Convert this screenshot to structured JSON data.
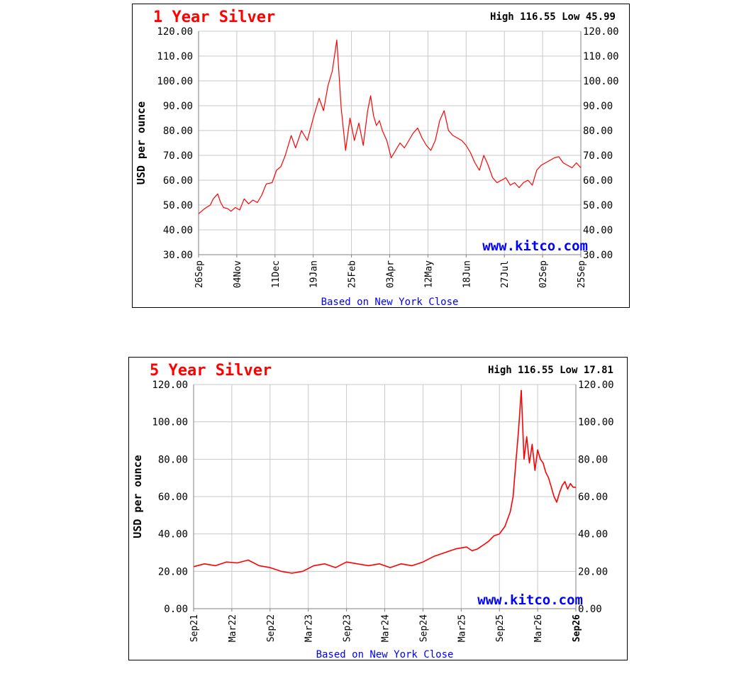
{
  "charts": {
    "colors": {
      "line": "#ff0000",
      "title": "#ff0000",
      "grid": "#c8c8c8",
      "border": "#000000",
      "axis_text": "#000000",
      "footer": "#0000ff",
      "watermark": "#0000ff"
    },
    "one_year": {
      "title": "1 Year Silver",
      "high_low": "High 116.55 Low 45.99",
      "watermark": "www.kitco.com",
      "footer": "Based on New York Close",
      "ylabel": "USD per ounce"
    },
    "five_year": {
      "title": "5 Year Silver",
      "high_low": "High 116.55 Low 17.81",
      "watermark": "www.kitco.com",
      "footer": "Based on New York Close",
      "ylabel": "USD per ounce"
    }
  },
  "chart_data": [
    {
      "type": "line",
      "title": "1 Year Silver",
      "subtitle": "High 116.55 Low 45.99",
      "xlabel": "",
      "ylabel": "USD per ounce",
      "ylim": [
        30,
        120
      ],
      "y_ticks": [
        "30.00",
        "40.00",
        "50.00",
        "60.00",
        "70.00",
        "80.00",
        "90.00",
        "100.00",
        "110.00",
        "120.00"
      ],
      "x_ticks": [
        "26Sep",
        "04Nov",
        "11Dec",
        "19Jan",
        "25Feb",
        "03Apr",
        "12May",
        "18Jun",
        "27Jul",
        "02Sep",
        "25Sep"
      ],
      "grid": true,
      "series": [
        {
          "x": [
            0,
            4,
            8,
            10,
            13,
            15,
            17,
            20,
            22,
            25,
            28,
            31,
            34,
            37,
            40,
            43,
            46,
            50,
            53,
            56,
            59,
            63,
            66,
            70,
            74,
            78,
            82,
            85,
            88,
            91,
            94,
            97,
            100,
            103,
            106,
            109,
            112,
            115,
            117,
            119,
            121,
            123,
            125,
            128,
            131,
            134,
            137,
            140,
            143,
            146,
            149,
            152,
            155,
            158,
            161,
            164,
            167,
            170,
            173,
            176,
            179,
            182,
            185,
            188,
            191,
            194,
            197,
            200,
            203,
            206,
            209,
            212,
            215,
            218,
            221,
            224,
            227,
            230,
            233,
            236,
            239,
            242,
            245,
            248,
            251,
            254,
            257,
            260
          ],
          "y": [
            46.5,
            48.5,
            50,
            52.5,
            54.5,
            51,
            49,
            48.5,
            47.5,
            49,
            48,
            52.5,
            50.5,
            52,
            51,
            54,
            58.5,
            59,
            64,
            65.5,
            70,
            78,
            73,
            80,
            76,
            85,
            93,
            88,
            98,
            104,
            116.5,
            89,
            72,
            85,
            76,
            83,
            74,
            88,
            94,
            86,
            82,
            84,
            80,
            76,
            69,
            72,
            75,
            73,
            76,
            79,
            81,
            77,
            74,
            72,
            76,
            84,
            88,
            80,
            78,
            77,
            76,
            74,
            71,
            67,
            64,
            70,
            66,
            61,
            59,
            60,
            61,
            58,
            59,
            57,
            59,
            60,
            58,
            64,
            66,
            67,
            68,
            69,
            69.5,
            67,
            66,
            65,
            67,
            65
          ],
          "x_domain": [
            0,
            260
          ]
        }
      ]
    },
    {
      "type": "line",
      "title": "5 Year Silver",
      "subtitle": "High 116.55 Low 17.81",
      "xlabel": "",
      "ylabel": "USD per ounce",
      "ylim": [
        0,
        120
      ],
      "y_ticks": [
        "0.00",
        "20.00",
        "40.00",
        "60.00",
        "80.00",
        "100.00",
        "120.00"
      ],
      "x_ticks": [
        "Sep21",
        "Mar22",
        "Sep22",
        "Mar23",
        "Sep23",
        "Mar24",
        "Sep24",
        "Mar25",
        "Sep25",
        "Mar26",
        "Sep26"
      ],
      "grid": true,
      "series": [
        {
          "x": [
            0,
            2,
            4,
            6,
            8,
            10,
            12,
            14,
            16,
            18,
            20,
            22,
            24,
            26,
            28,
            30,
            32,
            34,
            36,
            38,
            40,
            42,
            44,
            46,
            48,
            50,
            51,
            52,
            53,
            54,
            55,
            56,
            57,
            57.5,
            58,
            58.5,
            59,
            59.5,
            60
          ],
          "y": [
            22.5,
            24,
            23,
            25,
            24.5,
            26,
            23,
            22,
            20,
            19,
            20,
            23,
            24,
            22,
            25,
            24,
            23,
            24,
            22,
            24,
            23,
            25,
            28,
            30,
            32,
            33,
            31,
            32,
            34,
            36,
            39,
            40,
            44,
            48,
            52,
            60,
            78,
            95,
            117
          ],
          "x_domain": [
            0,
            70
          ],
          "comment_x": "months since Sep21"
        },
        {
          "x": [
            60,
            60.5,
            61,
            61.5,
            62,
            62.5,
            63,
            63.5,
            64,
            64.5,
            65,
            65.5,
            66,
            66.5,
            67,
            67.5,
            68,
            68.5,
            69,
            69.5,
            70
          ],
          "y": [
            117,
            80,
            92,
            78,
            88,
            74,
            85,
            80,
            78,
            73,
            70,
            65,
            60,
            57,
            62,
            66,
            68,
            64,
            67,
            65,
            65
          ],
          "x_domain": [
            0,
            70
          ]
        }
      ]
    }
  ]
}
